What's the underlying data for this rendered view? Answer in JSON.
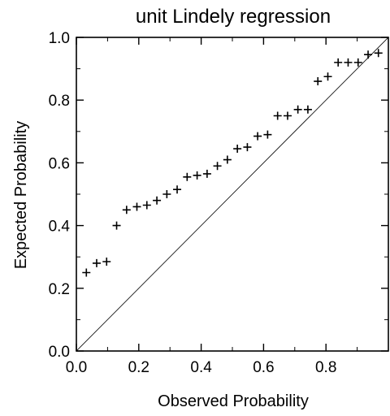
{
  "chart_data": {
    "type": "scatter",
    "title": "unit Lindely regression",
    "xlabel": "Observed Probability",
    "ylabel": "Expected Probability",
    "xlim": [
      0,
      1
    ],
    "ylim": [
      0,
      1
    ],
    "xticks": [
      "0.0",
      "0.2",
      "0.4",
      "0.6",
      "0.8"
    ],
    "yticks": [
      "0.0",
      "0.2",
      "0.4",
      "0.6",
      "0.8",
      "1.0"
    ],
    "grid": false,
    "reference_line": "y = x",
    "marker": "+",
    "colors": {
      "points": "#000000",
      "reference_line": "#000000",
      "axes": "#000000"
    },
    "x": [
      0.032,
      0.065,
      0.097,
      0.129,
      0.161,
      0.194,
      0.226,
      0.258,
      0.29,
      0.323,
      0.355,
      0.387,
      0.419,
      0.452,
      0.484,
      0.516,
      0.548,
      0.581,
      0.613,
      0.645,
      0.677,
      0.71,
      0.742,
      0.774,
      0.806,
      0.839,
      0.871,
      0.903,
      0.935,
      0.968
    ],
    "y": [
      0.25,
      0.28,
      0.285,
      0.4,
      0.45,
      0.46,
      0.465,
      0.48,
      0.5,
      0.515,
      0.555,
      0.56,
      0.565,
      0.59,
      0.61,
      0.645,
      0.65,
      0.685,
      0.69,
      0.75,
      0.75,
      0.77,
      0.77,
      0.86,
      0.875,
      0.92,
      0.92,
      0.92,
      0.945,
      0.95
    ]
  }
}
